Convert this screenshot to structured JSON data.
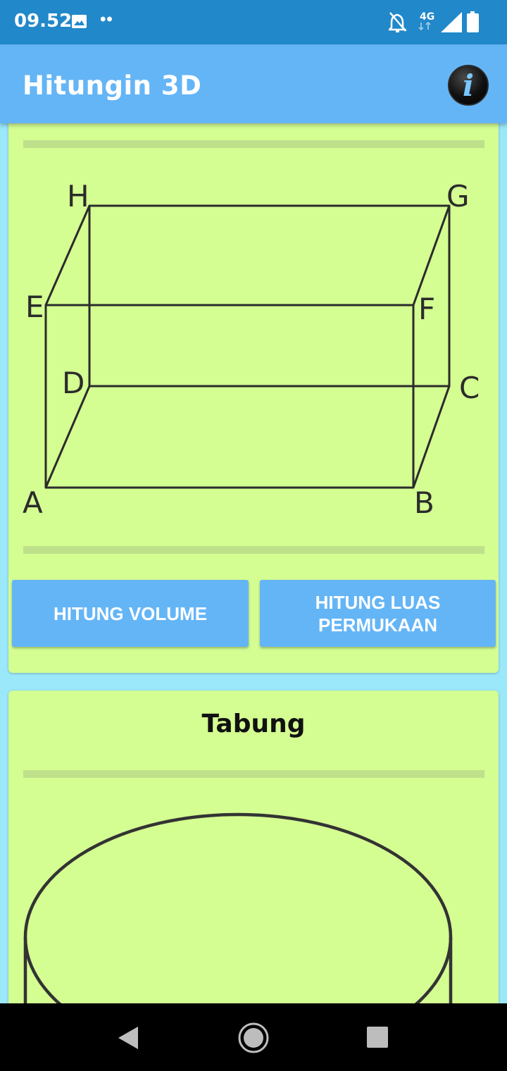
{
  "status_bar": {
    "time": "09.52",
    "dots": "••",
    "network": "4G",
    "icons": [
      "image-icon",
      "notifications-off-icon",
      "signal-icon",
      "battery-icon"
    ]
  },
  "app_bar": {
    "title": "Hitungin 3D",
    "info_icon": "i"
  },
  "cuboid_card": {
    "vertices": [
      "A",
      "B",
      "C",
      "D",
      "E",
      "F",
      "G",
      "H"
    ],
    "buttons": {
      "volume": "HITUNG VOLUME",
      "surface_area": "HITUNG LUAS\nPERMUKAAN"
    }
  },
  "cylinder_card": {
    "title": "Tabung"
  },
  "nav_bar": {
    "icons": [
      "back-icon",
      "home-icon",
      "recents-icon"
    ]
  },
  "colors": {
    "status_bar": "#2188c9",
    "app_bar": "#64b5f6",
    "card": "#d4fd92",
    "background": "#9be8fb",
    "button": "#64b5f6"
  }
}
